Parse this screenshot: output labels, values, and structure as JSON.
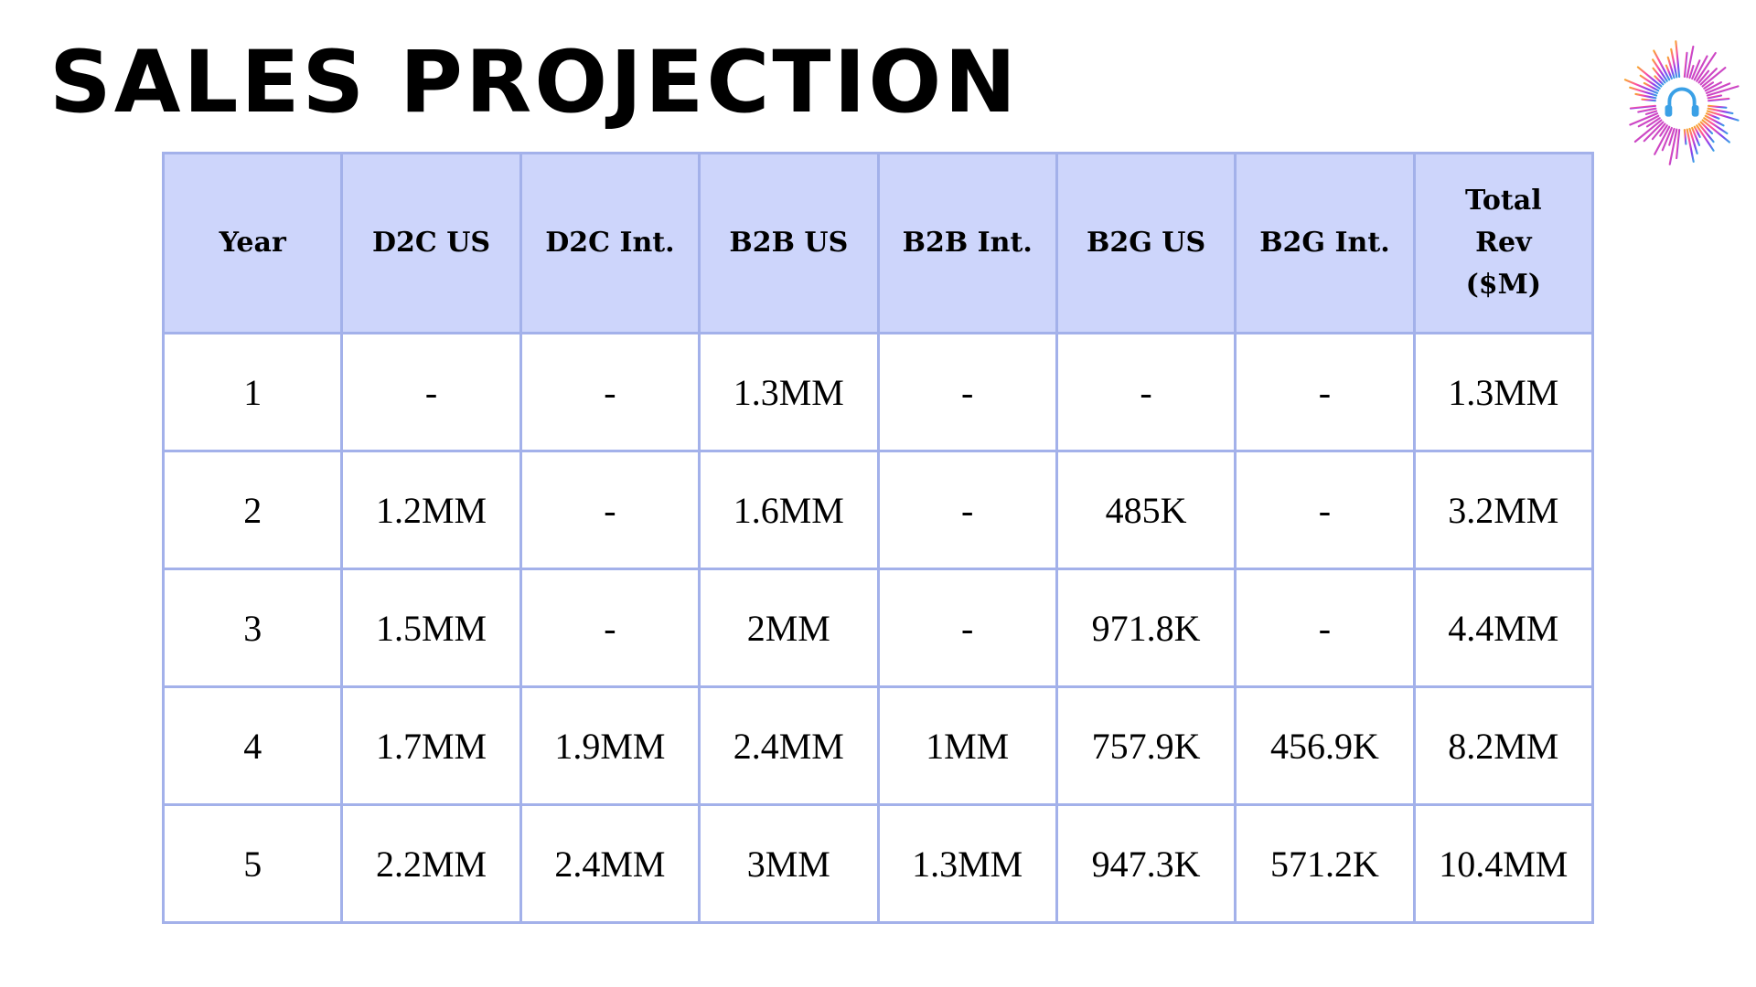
{
  "page": {
    "title": "SALES PROJECTION"
  },
  "logo": {
    "icon": "headphones-sound-burst-icon",
    "colors": [
      "#ff4fa3",
      "#8a3cf0",
      "#3aa0e6",
      "#f7a531"
    ]
  },
  "colors": {
    "header_background": "#cdd5fb",
    "border": "#a3b1ea"
  },
  "table": {
    "headers": [
      "Year",
      "D2C US",
      "D2C Int.",
      "B2B US",
      "B2B Int.",
      "B2G US",
      "B2G Int.",
      "Total Rev ($M)"
    ],
    "rows": [
      [
        "1",
        "-",
        "-",
        "1.3MM",
        "-",
        "-",
        "-",
        "1.3MM"
      ],
      [
        "2",
        "1.2MM",
        "-",
        "1.6MM",
        "-",
        "485K",
        "-",
        "3.2MM"
      ],
      [
        "3",
        "1.5MM",
        "-",
        "2MM",
        "-",
        "971.8K",
        "-",
        "4.4MM"
      ],
      [
        "4",
        "1.7MM",
        "1.9MM",
        "2.4MM",
        "1MM",
        "757.9K",
        "456.9K",
        "8.2MM"
      ],
      [
        "5",
        "2.2MM",
        "2.4MM",
        "3MM",
        "1.3MM",
        "947.3K",
        "571.2K",
        "10.4MM"
      ]
    ]
  }
}
